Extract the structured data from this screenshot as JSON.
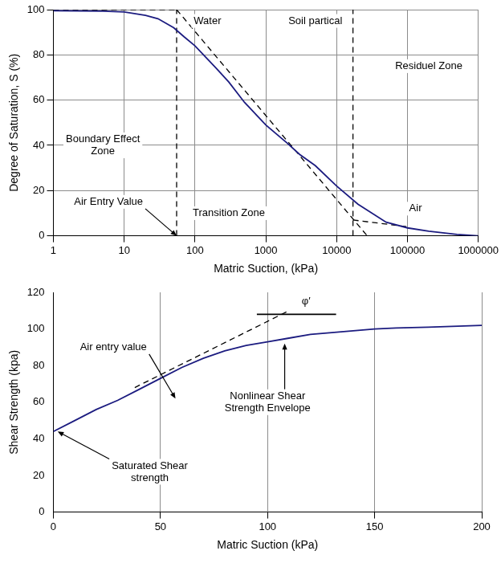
{
  "chart_data": [
    {
      "type": "line",
      "x_label": "Matric Suction, (kPa)",
      "y_label": "Degree of Saturation, S (%)",
      "log": "x",
      "xlim": [
        1,
        1000000
      ],
      "xticks": [
        1,
        10,
        100,
        1000,
        10000,
        100000,
        1000000
      ],
      "ylim": [
        0,
        100
      ],
      "yticks": [
        0,
        20,
        40,
        60,
        80,
        100
      ],
      "grid": true,
      "series": [
        {
          "color": "#1c1c80",
          "line_style": "solid",
          "marker": "none",
          "x": [
            1,
            5,
            10,
            20,
            30,
            50,
            70,
            100,
            200,
            300,
            500,
            1000,
            2000,
            3000,
            5000,
            10000,
            20000,
            50000,
            100000,
            200000,
            500000,
            1000000
          ],
          "values": [
            99.5,
            99.3,
            99,
            97.5,
            96,
            92,
            88,
            84,
            74,
            68,
            59,
            49,
            41,
            36,
            31,
            22,
            14,
            6,
            3.5,
            2,
            0.6,
            0
          ]
        },
        {
          "color": "#000000",
          "line_style": "dashed",
          "marker": "none",
          "x": [
            1,
            55
          ],
          "values": [
            100,
            100
          ]
        },
        {
          "color": "#000000",
          "line_style": "dashed",
          "marker": "none",
          "x": [
            55,
            55
          ],
          "values": [
            0,
            100
          ]
        },
        {
          "color": "#000000",
          "line_style": "dashed",
          "marker": "none",
          "x": [
            55,
            27000
          ],
          "values": [
            100,
            0
          ]
        },
        {
          "color": "#000000",
          "line_style": "dashed",
          "marker": "none",
          "x": [
            17000,
            17000
          ],
          "values": [
            0,
            100
          ]
        },
        {
          "color": "#000000",
          "line_style": "dashed",
          "marker": "none",
          "x": [
            17000,
            100000
          ],
          "values": [
            7,
            4
          ]
        }
      ],
      "annotations": [
        {
          "text": "Water",
          "x": 150,
          "y": 95
        },
        {
          "text": "Soil partical",
          "x": 5000,
          "y": 95
        },
        {
          "text": "Residuel Zone",
          "x": 200000,
          "y": 75
        },
        {
          "text": "Boundary Effect Zone",
          "x": 5,
          "y": 40
        },
        {
          "text": "Air Entry Value",
          "x": 6,
          "y": 15,
          "arrow": [
            55,
            0
          ]
        },
        {
          "text": "Transition Zone",
          "x": 300,
          "y": 10
        },
        {
          "text": "Air",
          "x": 130000,
          "y": 12
        }
      ]
    },
    {
      "type": "line",
      "x_label": "Matric Suction (kPa)",
      "y_label": "Shear Strength (kpa)",
      "xlim": [
        0,
        200
      ],
      "xticks": [
        0,
        50,
        100,
        150,
        200
      ],
      "ylim": [
        0,
        120
      ],
      "yticks": [
        0,
        20,
        40,
        60,
        80,
        100,
        120
      ],
      "grid": "x",
      "series": [
        {
          "color": "#1c1c80",
          "line_style": "solid",
          "marker": "none",
          "x": [
            0,
            10,
            20,
            30,
            40,
            50,
            60,
            70,
            80,
            90,
            100,
            110,
            120,
            130,
            140,
            150,
            160,
            175,
            200
          ],
          "values": [
            44,
            50,
            56,
            61,
            67,
            73,
            79,
            84,
            88,
            91,
            93,
            95,
            97,
            98,
            99,
            100,
            100.5,
            101,
            102
          ]
        },
        {
          "color": "#000000",
          "line_style": "dashed",
          "marker": "none",
          "x": [
            38,
            110
          ],
          "values": [
            68,
            110
          ]
        },
        {
          "color": "#000000",
          "line_style": "solid",
          "marker": "none",
          "x": [
            95,
            132
          ],
          "values": [
            108,
            108
          ]
        }
      ],
      "annotations": [
        {
          "text": "φ′",
          "x": 118,
          "y": 115
        },
        {
          "text": "Air entry value",
          "x": 28,
          "y": 90,
          "arrow": [
            57,
            62
          ]
        },
        {
          "text": "Nonlinear Shear Strength Envelope",
          "x": 100,
          "y": 60,
          "arrow": [
            108,
            92
          ]
        },
        {
          "text": "Saturated Shear strength",
          "x": 45,
          "y": 22,
          "arrow": [
            2,
            44
          ]
        }
      ]
    }
  ]
}
